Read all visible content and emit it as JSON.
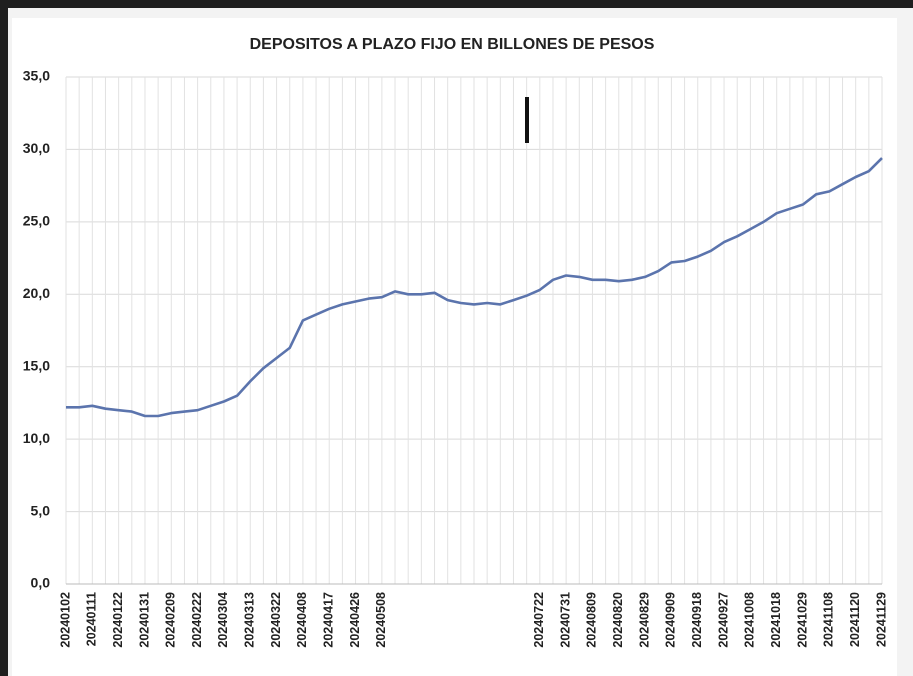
{
  "chart_data": {
    "type": "line",
    "title": "DEPOSITOS A PLAZO FIJO EN BILLONES DE PESOS",
    "categories": [
      "20240102",
      null,
      "20240111",
      null,
      "20240122",
      null,
      "20240131",
      null,
      "20240209",
      null,
      "20240222",
      null,
      "20240304",
      null,
      "20240313",
      null,
      "20240322",
      null,
      "20240408",
      null,
      "20240417",
      null,
      "20240426",
      null,
      "20240508",
      null,
      null,
      null,
      null,
      null,
      null,
      null,
      null,
      null,
      null,
      null,
      "20240722",
      null,
      "20240731",
      null,
      "20240809",
      null,
      "20240820",
      null,
      "20240829",
      null,
      "20240909",
      null,
      "20240918",
      null,
      "20240927",
      null,
      "20241008",
      null,
      "20241018",
      null,
      "20241029",
      null,
      "20241108",
      null,
      "20241120",
      null,
      "20241129"
    ],
    "series": [
      {
        "name": "Depositos a plazo fijo",
        "color": "#5b74ad",
        "values": [
          12.2,
          12.2,
          12.3,
          12.1,
          12.0,
          11.9,
          11.6,
          11.6,
          11.8,
          11.9,
          12.0,
          12.3,
          12.6,
          13.0,
          14.0,
          14.9,
          15.6,
          16.3,
          18.2,
          18.6,
          19.0,
          19.3,
          19.5,
          19.7,
          19.8,
          20.2,
          20.0,
          20.0,
          20.1,
          19.6,
          19.4,
          19.3,
          19.4,
          19.3,
          19.6,
          19.9,
          20.3,
          21.0,
          21.3,
          21.2,
          21.0,
          21.0,
          20.9,
          21.0,
          21.2,
          21.6,
          22.2,
          22.3,
          22.6,
          23.0,
          23.6,
          24.0,
          24.5,
          25.0,
          25.6,
          25.9,
          26.2,
          26.9,
          27.1,
          27.6,
          28.1,
          28.5,
          29.4
        ]
      }
    ],
    "ylim": [
      0,
      35
    ],
    "yticks": [
      {
        "value": 0,
        "label": "0,0"
      },
      {
        "value": 5,
        "label": "5,0"
      },
      {
        "value": 10,
        "label": "10,0"
      },
      {
        "value": 15,
        "label": "15,0"
      },
      {
        "value": 20,
        "label": "20,0"
      },
      {
        "value": 25,
        "label": "25,0"
      },
      {
        "value": 30,
        "label": "30,0"
      },
      {
        "value": 35,
        "label": "35,0"
      }
    ],
    "grid": true
  }
}
